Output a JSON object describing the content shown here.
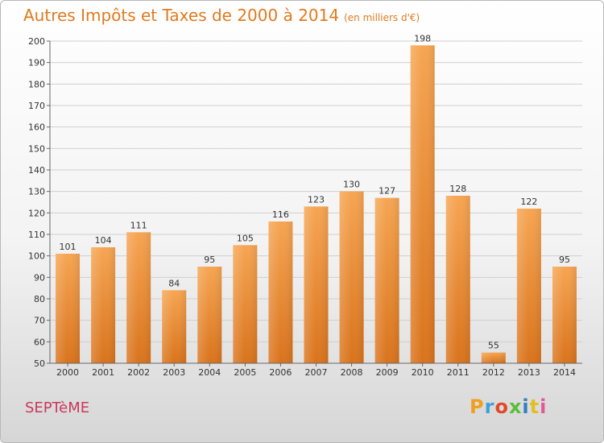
{
  "title": "Autres Impôts et Taxes de 2000 à 2014",
  "unit": "(en milliers d'€)",
  "commune": "SEPTèME",
  "logo": "Proxiti",
  "colors": {
    "bar_light": "#f6a552",
    "bar_dark": "#d9731c",
    "title": "#e07a1e",
    "commune": "#c8395d",
    "grid": "#cfcfcf"
  },
  "chart_data": {
    "type": "bar",
    "title": "Autres Impôts et Taxes de 2000 à 2014",
    "subtitle": "(en milliers d'€)",
    "categories": [
      "2000",
      "2001",
      "2002",
      "2003",
      "2004",
      "2005",
      "2006",
      "2007",
      "2008",
      "2009",
      "2010",
      "2011",
      "2012",
      "2013",
      "2014"
    ],
    "values": [
      101,
      104,
      111,
      84,
      95,
      105,
      116,
      123,
      130,
      127,
      198,
      128,
      55,
      122,
      95
    ],
    "ylim": [
      50,
      200
    ],
    "yticks": [
      50,
      60,
      70,
      80,
      90,
      100,
      110,
      120,
      130,
      140,
      150,
      160,
      170,
      180,
      190,
      200
    ],
    "grid": true,
    "legend": "none"
  }
}
